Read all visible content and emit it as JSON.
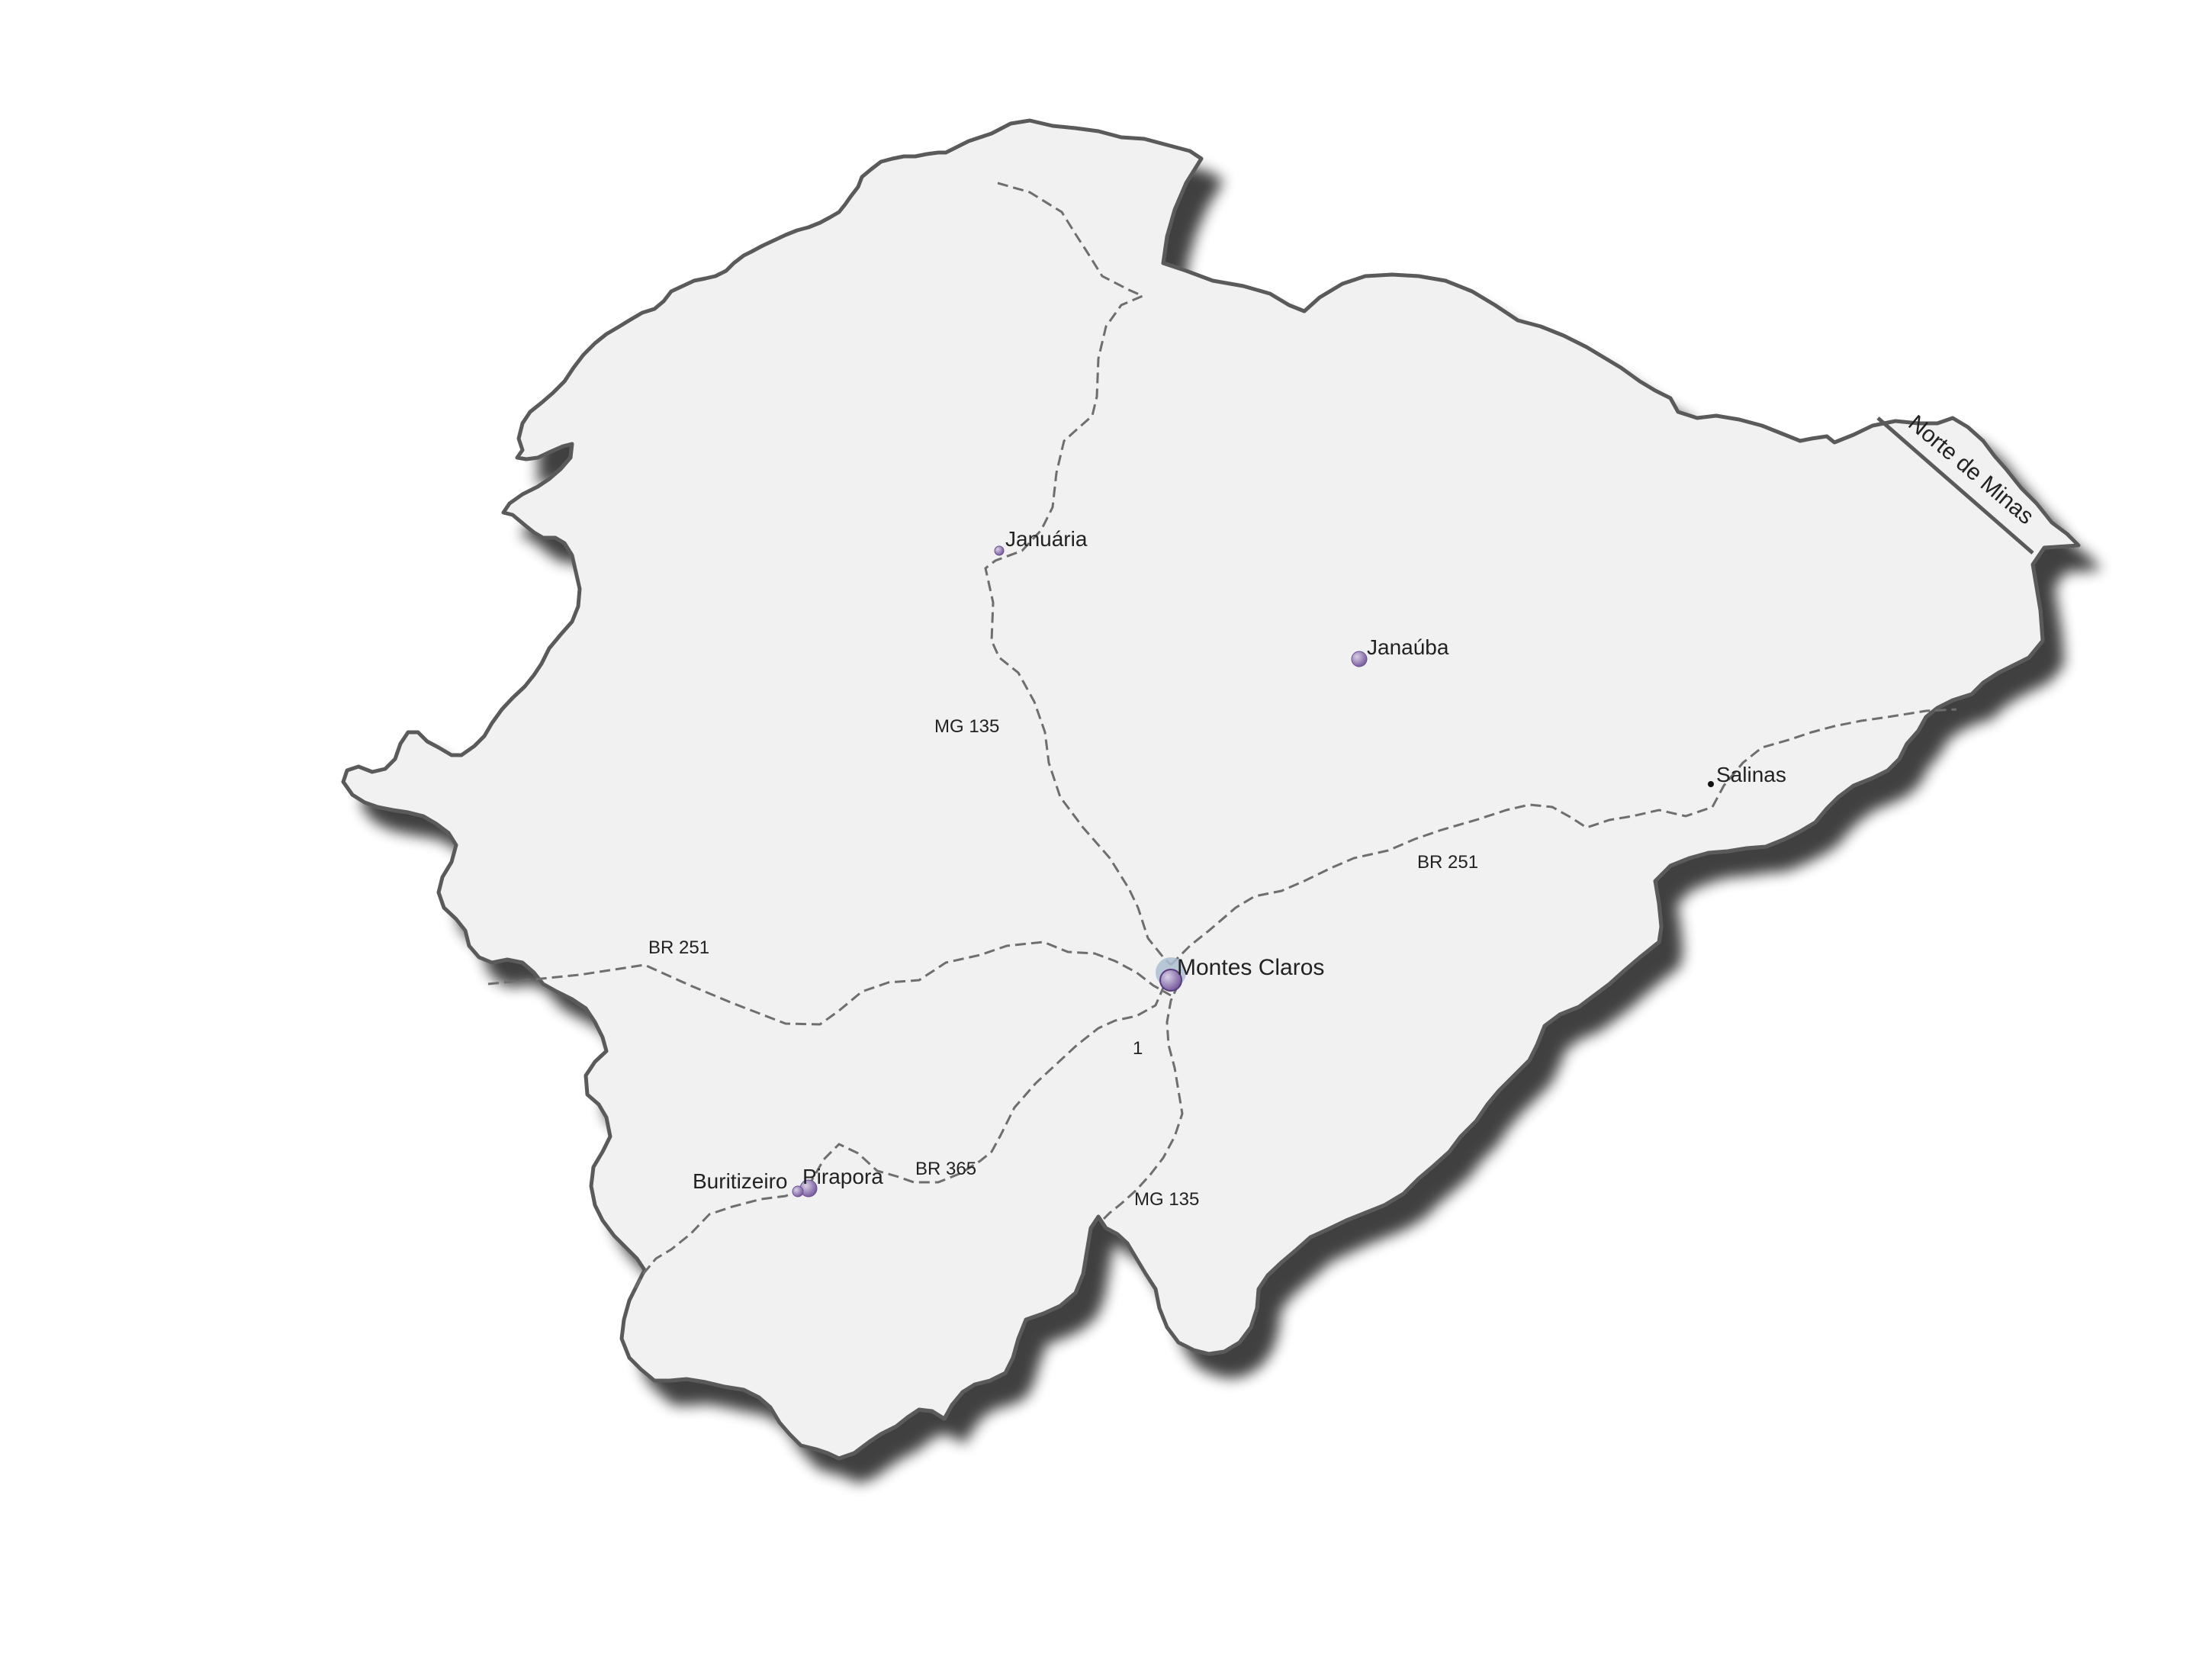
{
  "map": {
    "region_label": "Norte de Minas",
    "colors": {
      "background": "#ffffff",
      "region_fill": "#f1f1f1",
      "border": "#5a5a5a",
      "road": "#6e6e6e",
      "city_marker": "#8a72ad",
      "city_marker_major": "#6d4f93",
      "label": "#222222"
    },
    "cities": [
      {
        "name": "Januária",
        "size": "small"
      },
      {
        "name": "Janaúba",
        "size": "medium"
      },
      {
        "name": "Salinas",
        "size": "tiny"
      },
      {
        "name": "Montes Claros",
        "size": "large"
      },
      {
        "name": "Pirapora",
        "size": "medium"
      },
      {
        "name": "Buritizeiro",
        "size": "small"
      }
    ],
    "roads": [
      {
        "label": "MG 135"
      },
      {
        "label": "BR 251"
      },
      {
        "label": "BR 251"
      },
      {
        "label": "BR 365"
      },
      {
        "label": "MG 135"
      },
      {
        "label": "1"
      }
    ]
  }
}
